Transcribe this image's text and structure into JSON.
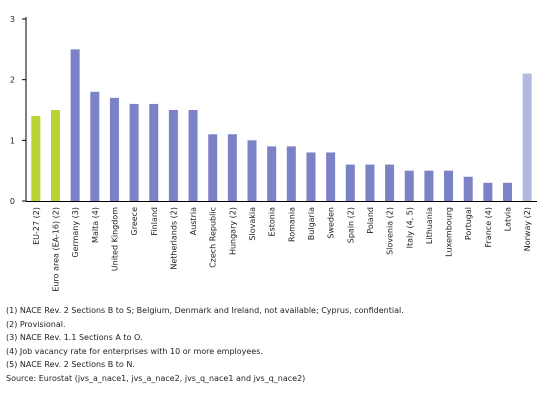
{
  "chart_data": {
    "type": "bar",
    "title": "",
    "xlabel": "",
    "ylabel": "",
    "ylim": [
      0,
      3
    ],
    "yticks": [
      0,
      1,
      2,
      3
    ],
    "grid": false,
    "categories": [
      "EU-27 (2)",
      "Euro area (EA-16) (2)",
      "Germany (3)",
      "Malta (4)",
      "United Kingdom",
      "Greece",
      "Finland",
      "Netherlands (2)",
      "Austria",
      "Czech Republic",
      "Hungary (2)",
      "Slovakia",
      "Estonia",
      "Romania",
      "Bulgaria",
      "Sweden",
      "Spain (2)",
      "Poland",
      "Slovenia (2)",
      "Italy (4, 5)",
      "Lithuania",
      "Luxembourg",
      "Portugal",
      "France (4)",
      "Latvia",
      "Norway (2)"
    ],
    "values": [
      1.4,
      1.5,
      2.5,
      1.8,
      1.7,
      1.6,
      1.6,
      1.5,
      1.5,
      1.1,
      1.1,
      1.0,
      0.9,
      0.9,
      0.8,
      0.8,
      0.6,
      0.6,
      0.6,
      0.5,
      0.5,
      0.5,
      0.4,
      0.3,
      0.3,
      2.1
    ],
    "colors": [
      "#b7d334",
      "#b7d334",
      "#7b82c6",
      "#7b82c6",
      "#7b82c6",
      "#7b82c6",
      "#7b82c6",
      "#7b82c6",
      "#7b82c6",
      "#7b82c6",
      "#7b82c6",
      "#7b82c6",
      "#7b82c6",
      "#7b82c6",
      "#7b82c6",
      "#7b82c6",
      "#7b82c6",
      "#7b82c6",
      "#7b82c6",
      "#7b82c6",
      "#7b82c6",
      "#7b82c6",
      "#7b82c6",
      "#7b82c6",
      "#7b82c6",
      "#b3b7e2"
    ]
  },
  "notes": [
    "(1) NACE Rev. 2 Sections B to S; Belgium, Denmark and Ireland, not available; Cyprus, confidential.",
    "(2) Provisional.",
    "(3) NACE Rev. 1.1 Sections A to O.",
    "(4) Job vacancy rate for enterprises with 10 or more employees.",
    "(5) NACE Rev. 2 Sections B to N.",
    "Source: Eurostat (jvs_a_nace1, jvs_a_nace2, jvs_q_nace1 and jvs_q_nace2)"
  ]
}
